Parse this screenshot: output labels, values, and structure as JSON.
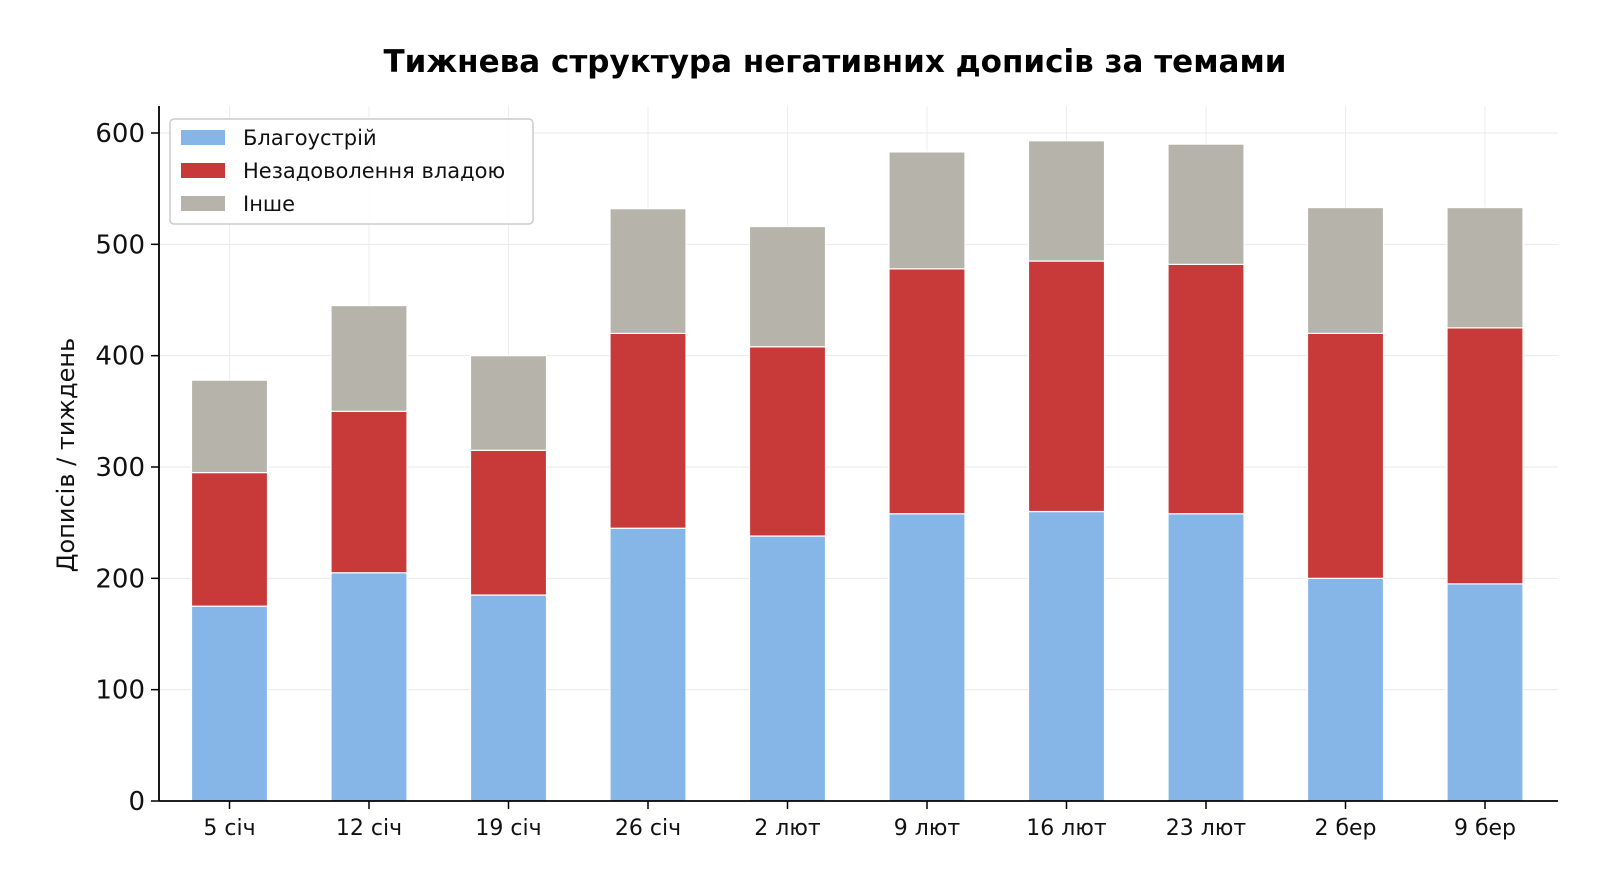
{
  "chart_data": {
    "type": "bar",
    "stacked": true,
    "title": "Тижнева структура негативних дописів за темами",
    "xlabel": "",
    "ylabel": "Дописів / тиждень",
    "categories": [
      "5 січ",
      "12 січ",
      "19 січ",
      "26 січ",
      "2 лют",
      "9 лют",
      "16 лют",
      "23 лют",
      "2 бер",
      "9 бер"
    ],
    "series": [
      {
        "name": "Благоустрій",
        "color": "#86b6e8",
        "values": [
          175,
          205,
          185,
          245,
          238,
          258,
          260,
          258,
          200,
          195
        ]
      },
      {
        "name": "Незадоволення владою",
        "color": "#c8393a",
        "values": [
          120,
          145,
          130,
          175,
          170,
          220,
          225,
          224,
          220,
          230
        ]
      },
      {
        "name": "Інше",
        "color": "#b5b3aa",
        "values": [
          83,
          95,
          85,
          112,
          108,
          105,
          108,
          108,
          113,
          108
        ]
      }
    ],
    "ylim": [
      0,
      622
    ],
    "yticks": [
      0,
      100,
      200,
      300,
      400,
      500,
      600
    ],
    "grid": true,
    "legend_position": "top-left"
  }
}
